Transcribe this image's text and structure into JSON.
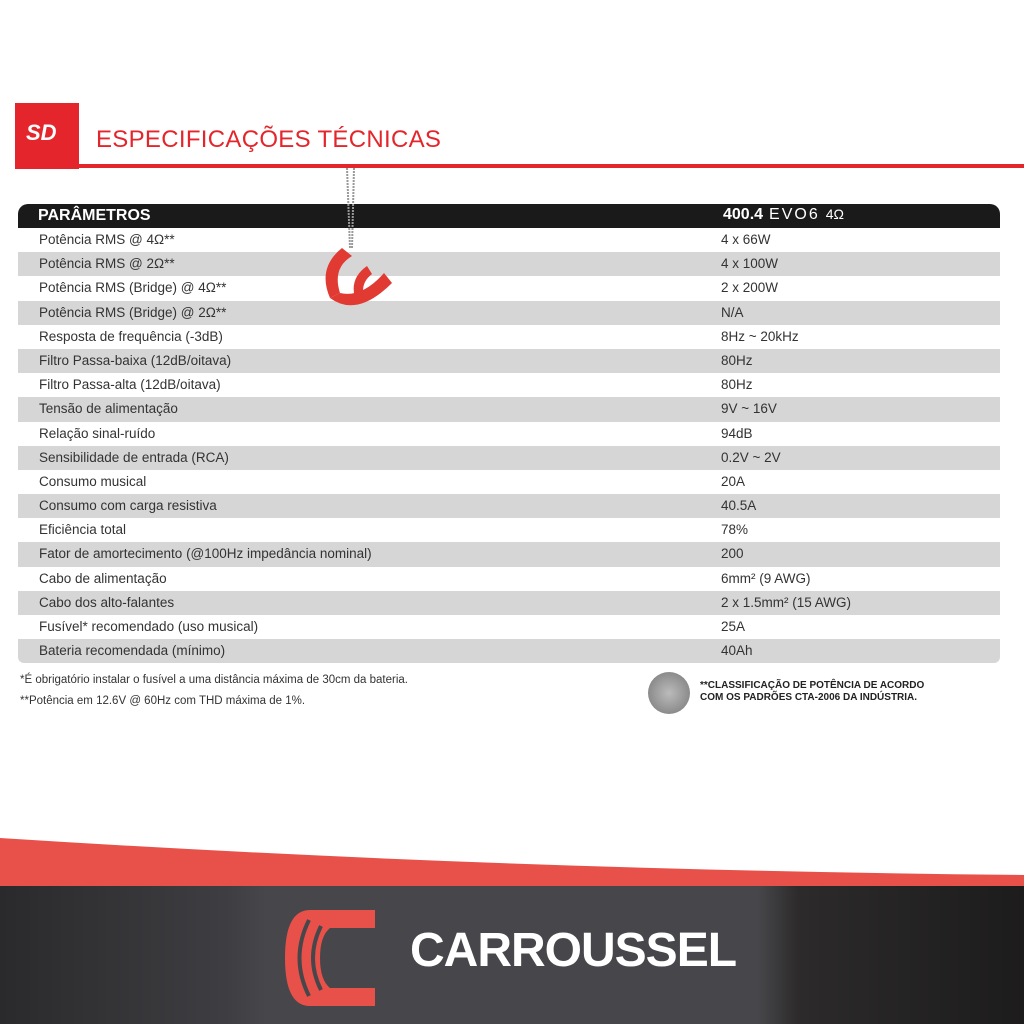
{
  "header": {
    "badge": "SD",
    "title": "ESPECIFICAÇÕES TÉCNICAS"
  },
  "table": {
    "col_param": "PARÂMETROS",
    "model": {
      "number": "400.4",
      "series": "EVO6",
      "impedance": "4Ω"
    },
    "rows": [
      {
        "k": "Potência RMS @ 4Ω**",
        "v": "4 x 66W"
      },
      {
        "k": "Potência RMS @ 2Ω**",
        "v": "4 x 100W"
      },
      {
        "k": "Potência RMS (Bridge) @ 4Ω**",
        "v": "2 x 200W"
      },
      {
        "k": "Potência RMS (Bridge) @ 2Ω**",
        "v": "N/A"
      },
      {
        "k": "Resposta de frequência (-3dB)",
        "v": "8Hz ~ 20kHz"
      },
      {
        "k": "Filtro Passa-baixa (12dB/oitava)",
        "v": "80Hz"
      },
      {
        "k": "Filtro Passa-alta (12dB/oitava)",
        "v": "80Hz"
      },
      {
        "k": "Tensão de alimentação",
        "v": "9V ~ 16V"
      },
      {
        "k": "Relação sinal-ruído",
        "v": "94dB"
      },
      {
        "k": "Sensibilidade de entrada (RCA)",
        "v": "0.2V ~ 2V"
      },
      {
        "k": "Consumo musical",
        "v": "20A"
      },
      {
        "k": "Consumo com carga resistiva",
        "v": "40.5A"
      },
      {
        "k": "Eficiência total",
        "v": "78%"
      },
      {
        "k": "Fator de amortecimento (@100Hz impedância nominal)",
        "v": "200"
      },
      {
        "k": "Cabo de alimentação",
        "v": "6mm² (9 AWG)"
      },
      {
        "k": "Cabo dos alto-falantes",
        "v": "2 x 1.5mm² (15 AWG)"
      },
      {
        "k": "Fusível* recomendado (uso musical)",
        "v": "25A"
      },
      {
        "k": "Bateria recomendada (mínimo)",
        "v": "40Ah"
      }
    ]
  },
  "notes": [
    "*É obrigatório instalar o fusível a uma distância máxima de 30cm da bateria.",
    "**Potência em 12.6V @ 60Hz com THD máxima de 1%."
  ],
  "cta_note": [
    "**CLASSIFICAÇÃO DE POTÊNCIA DE ACORDO",
    "COM OS PADRÕES CTA-2006 DA INDÚSTRIA."
  ],
  "footer": {
    "brand": "CARROUSSEL",
    "accent": "#e8514a",
    "dark": "#47474b"
  }
}
